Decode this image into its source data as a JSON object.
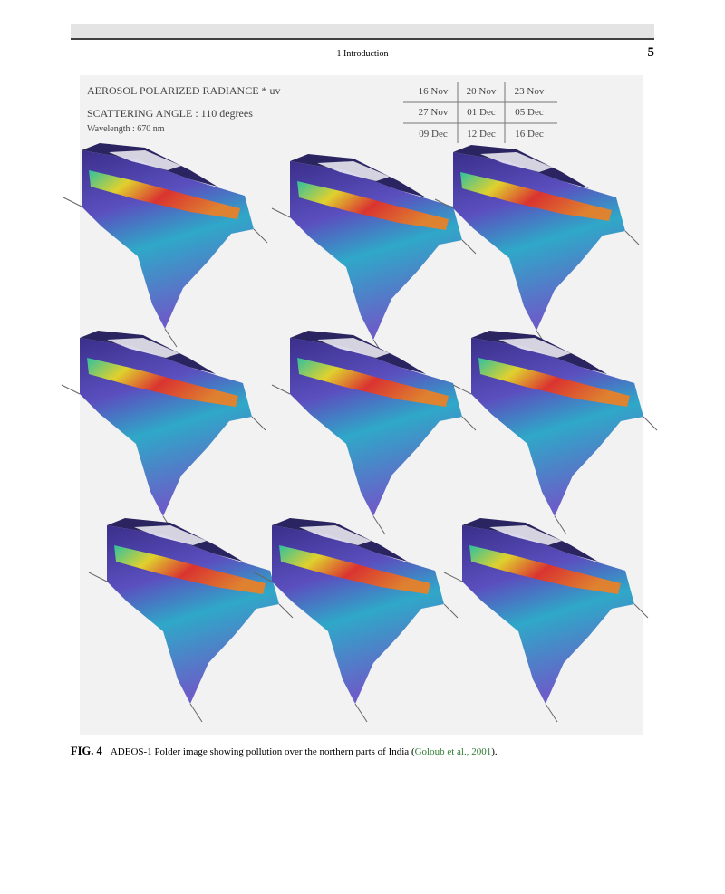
{
  "header": {
    "section": "1  Introduction",
    "page_number": "5"
  },
  "figure": {
    "title_lines": [
      "AEROSOL POLARIZED RADIANCE * uv",
      "SCATTERING ANGLE : 110 degrees",
      "Wavelength : 670 nm"
    ],
    "dates": [
      [
        "16 Nov",
        "20 Nov",
        "23 Nov"
      ],
      [
        "27 Nov",
        "01 Dec",
        "05 Dec"
      ],
      [
        "09 Dec",
        "12 Dec",
        "16 Dec"
      ]
    ]
  },
  "caption": {
    "label": "FIG. 4",
    "text": "ADEOS-1 Polder image showing pollution over the northern parts of India (",
    "citation": "Goloub et al., 2001",
    "end": ")."
  }
}
